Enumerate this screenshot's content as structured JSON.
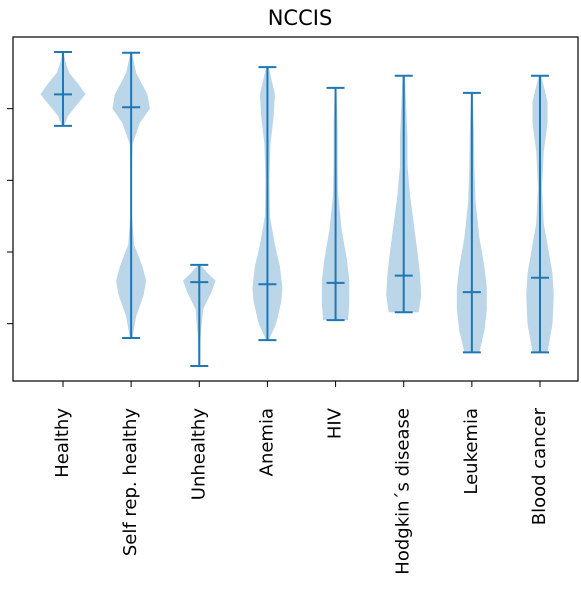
{
  "chart_data": {
    "type": "violin",
    "title": "NCCIS",
    "color": "#1f77b4",
    "ylim": [
      0.2,
      5.0
    ],
    "yticks": [
      1,
      2,
      3,
      4
    ],
    "categories": [
      "Healthy",
      "Self rep. healthy",
      "Unhealthy",
      "Anemia",
      "HIV",
      "Hodgkin´s disease",
      "Leukemia",
      "Blood cancer"
    ],
    "violins": [
      {
        "min": 3.76,
        "median": 4.2,
        "max": 4.79,
        "shape_y": [
          3.76,
          3.9,
          4.05,
          4.2,
          4.35,
          4.5,
          4.65,
          4.79
        ],
        "shape_width": [
          0.05,
          0.2,
          0.55,
          0.9,
          0.6,
          0.25,
          0.1,
          0.03
        ]
      },
      {
        "min": 0.8,
        "median": 4.02,
        "max": 4.78,
        "shape_y": [
          0.8,
          1.1,
          1.4,
          1.6,
          1.8,
          2.1,
          2.5,
          3.0,
          3.5,
          3.8,
          4.0,
          4.2,
          4.5,
          4.78
        ],
        "shape_width": [
          0.05,
          0.2,
          0.5,
          0.6,
          0.45,
          0.12,
          0.03,
          0.02,
          0.05,
          0.35,
          0.75,
          0.65,
          0.2,
          0.03
        ]
      },
      {
        "min": 0.41,
        "median": 1.58,
        "max": 1.82,
        "shape_y": [
          0.41,
          0.8,
          1.2,
          1.45,
          1.6,
          1.7,
          1.82
        ],
        "shape_width": [
          0.03,
          0.05,
          0.15,
          0.5,
          0.65,
          0.35,
          0.05
        ]
      },
      {
        "min": 0.77,
        "median": 1.55,
        "max": 4.58,
        "shape_y": [
          0.77,
          1.0,
          1.3,
          1.5,
          1.8,
          2.1,
          2.5,
          3.0,
          3.5,
          3.9,
          4.2,
          4.58
        ],
        "shape_width": [
          0.05,
          0.35,
          0.55,
          0.6,
          0.5,
          0.3,
          0.1,
          0.08,
          0.12,
          0.25,
          0.3,
          0.05
        ]
      },
      {
        "min": 1.05,
        "median": 1.57,
        "max": 4.29,
        "shape_y": [
          1.05,
          1.3,
          1.6,
          1.9,
          2.3,
          2.8,
          3.3,
          3.8,
          4.29
        ],
        "shape_width": [
          0.5,
          0.55,
          0.55,
          0.45,
          0.25,
          0.1,
          0.08,
          0.08,
          0.03
        ]
      },
      {
        "min": 1.16,
        "median": 1.67,
        "max": 4.46,
        "shape_y": [
          1.16,
          1.4,
          1.7,
          2.0,
          2.4,
          2.8,
          3.2,
          3.6,
          4.0,
          4.46
        ],
        "shape_width": [
          0.6,
          0.7,
          0.65,
          0.55,
          0.4,
          0.25,
          0.15,
          0.15,
          0.1,
          0.05
        ]
      },
      {
        "min": 0.6,
        "median": 1.44,
        "max": 4.22,
        "shape_y": [
          0.6,
          0.9,
          1.2,
          1.5,
          1.8,
          2.2,
          2.7,
          3.2,
          3.7,
          4.22
        ],
        "shape_width": [
          0.3,
          0.5,
          0.6,
          0.6,
          0.5,
          0.3,
          0.15,
          0.1,
          0.08,
          0.03
        ]
      },
      {
        "min": 0.6,
        "median": 1.64,
        "max": 4.46,
        "shape_y": [
          0.6,
          1.0,
          1.4,
          1.7,
          2.0,
          2.4,
          2.9,
          3.4,
          3.8,
          4.1,
          4.46
        ],
        "shape_width": [
          0.3,
          0.5,
          0.55,
          0.5,
          0.35,
          0.15,
          0.08,
          0.15,
          0.3,
          0.3,
          0.05
        ]
      }
    ]
  }
}
